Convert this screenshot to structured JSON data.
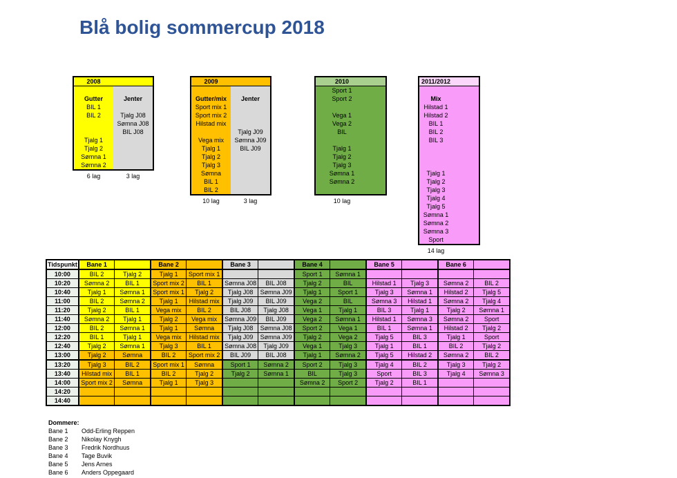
{
  "title": "Blå bolig sommercup 2018",
  "colors": {
    "yellow": "#ffff00",
    "orange": "#ffc000",
    "light_gray": "#d9d9d9",
    "green": "#70ad47",
    "light_green": "#a9d08e",
    "pink": "#f99cf9",
    "light_pink": "#fbd7fb",
    "time_fill": "#edf1ec",
    "title_blue": "#2f5496",
    "border": "#000000"
  },
  "groups": [
    {
      "year": "2008",
      "header_color": "Y",
      "footers": [
        "6 lag",
        "3 lag"
      ],
      "columns": [
        {
          "color": "Y",
          "rows": [
            "",
            {
              "t": "Gutter",
              "b": 1
            },
            "BIL 1",
            "BIL 2",
            "",
            "",
            "Tjalg 1",
            "Tjalg 2",
            "Sømna 1",
            "Sømna 2"
          ]
        },
        {
          "color": "G",
          "rows": [
            "",
            {
              "t": "Jenter",
              "b": 1
            },
            "",
            "Tjalg J08",
            "Sømna J08",
            "BIL J08",
            "",
            "",
            "",
            ""
          ]
        }
      ]
    },
    {
      "year": "2009",
      "header_color": "O",
      "footers": [
        "10 lag",
        "3 lag"
      ],
      "columns": [
        {
          "color": "O",
          "rows": [
            "",
            {
              "t": "Gutter/mix",
              "b": 1
            },
            "Sport mix 1",
            "Sport mix 2",
            "Hilstad mix",
            "",
            "Vega mix",
            "Tjalg 1",
            "Tjalg 2",
            "Tjalg 3",
            "Sømna",
            "BIL 1",
            "BIL 2"
          ]
        },
        {
          "color": "G",
          "rows": [
            "",
            {
              "t": "Jenter",
              "b": 1
            },
            "",
            "",
            "",
            "Tjalg J09",
            "Sømna J09",
            "BIL J09",
            "",
            "",
            "",
            "",
            ""
          ]
        }
      ]
    },
    {
      "year": "2010",
      "header_color": "NL",
      "footers": [
        "10 lag"
      ],
      "columns": [
        {
          "color": "N",
          "rows": [
            "Sport 1",
            "Sport 2",
            "",
            "Vega 1",
            "Vega 2",
            "BIL",
            "",
            "Tjalg 1",
            "Tjalg 2",
            "Tjalg 3",
            "Sømna 1",
            "Sømna 2",
            ""
          ]
        },
        {
          "color": "N",
          "rows": []
        }
      ]
    },
    {
      "year": "2011/2012",
      "header_color": "PL",
      "footers": [
        "14 lag"
      ],
      "columns": [
        {
          "color": "P",
          "rows": [
            "",
            {
              "t": "Mix",
              "b": 1
            },
            "Hilstad 1",
            "Hilstad 2",
            "BIL 1",
            "BIL 2",
            "BIL 3",
            "",
            "",
            "",
            "Tjalg 1",
            "Tjalg 2",
            "Tjalg 3",
            "Tjalg 4",
            "Tjalg 5",
            "Sømna 1",
            "Sømna 2",
            "Sømna 3",
            "Sport"
          ]
        },
        {
          "color": "P",
          "rows": []
        }
      ]
    }
  ],
  "schedule": {
    "time_label": "Tidspunkt",
    "banes": [
      {
        "label": "Bane 1",
        "color": "Y"
      },
      {
        "label": "Bane 2",
        "color": "O"
      },
      {
        "label": "Bane 3",
        "color": "G"
      },
      {
        "label": "Bane 4",
        "color": "N"
      },
      {
        "label": "Bane 5",
        "color": "P"
      },
      {
        "label": "Bane 6",
        "color": "P"
      }
    ],
    "rows": [
      {
        "time": "10:00",
        "cells": [
          [
            "BIL 2",
            "Y"
          ],
          [
            "Tjalg 2",
            "Y"
          ],
          [
            "Tjalg 1",
            "O"
          ],
          [
            "Sport mix 1",
            "O"
          ],
          [
            "",
            "G"
          ],
          [
            "",
            "G"
          ],
          [
            "Sport 1",
            "N"
          ],
          [
            "Sømna 1",
            "N"
          ],
          [
            "",
            "P"
          ],
          [
            "",
            "P"
          ],
          [
            "",
            "P"
          ],
          [
            "",
            "P"
          ]
        ]
      },
      {
        "time": "10:20",
        "cells": [
          [
            "Sømna 2",
            "Y"
          ],
          [
            "BIL 1",
            "Y"
          ],
          [
            "Sport mix 2",
            "O"
          ],
          [
            "BIL 1",
            "O"
          ],
          [
            "Sømna J08",
            "G"
          ],
          [
            "BIL J08",
            "G"
          ],
          [
            "Tjalg 2",
            "N"
          ],
          [
            "BIL",
            "N"
          ],
          [
            "Hilstad 1",
            "P"
          ],
          [
            "Tjalg 3",
            "P"
          ],
          [
            "Sømna 2",
            "P"
          ],
          [
            "BIL 2",
            "P"
          ]
        ]
      },
      {
        "time": "10:40",
        "cells": [
          [
            "Tjalg 1",
            "Y"
          ],
          [
            "Sømna 1",
            "Y"
          ],
          [
            "Sport mix 1",
            "O"
          ],
          [
            "Tjalg 2",
            "O"
          ],
          [
            "Tjalg J08",
            "G"
          ],
          [
            "Sømna J09",
            "G"
          ],
          [
            "Tjalg 1",
            "N"
          ],
          [
            "Sport 1",
            "N"
          ],
          [
            "Tjalg 3",
            "P"
          ],
          [
            "Sømna 1",
            "P"
          ],
          [
            "Hilstad 2",
            "P"
          ],
          [
            "Tjalg 5",
            "P"
          ]
        ]
      },
      {
        "time": "11:00",
        "cells": [
          [
            "BIL 2",
            "Y"
          ],
          [
            "Sømna 2",
            "Y"
          ],
          [
            "Tjalg 1",
            "O"
          ],
          [
            "Hilstad mix",
            "O"
          ],
          [
            "Tjalg J09",
            "G"
          ],
          [
            "BIL J09",
            "G"
          ],
          [
            "Vega 2",
            "N"
          ],
          [
            "BIL",
            "N"
          ],
          [
            "Sømna 3",
            "P"
          ],
          [
            "Hilstad 1",
            "P"
          ],
          [
            "Sømna 2",
            "P"
          ],
          [
            "Tjalg 4",
            "P"
          ]
        ]
      },
      {
        "time": "11:20",
        "cells": [
          [
            "Tjalg 2",
            "Y"
          ],
          [
            "BIL 1",
            "Y"
          ],
          [
            "Vega mix",
            "O"
          ],
          [
            "BIL 2",
            "O"
          ],
          [
            "BIL J08",
            "G"
          ],
          [
            "Tjalg J08",
            "G"
          ],
          [
            "Vega 1",
            "N"
          ],
          [
            "Tjalg 1",
            "N"
          ],
          [
            "BIL 3",
            "P"
          ],
          [
            "Tjalg 1",
            "P"
          ],
          [
            "Tjalg 2",
            "P"
          ],
          [
            "Sømna 1",
            "P"
          ]
        ]
      },
      {
        "time": "11:40",
        "cells": [
          [
            "Sømna 2",
            "Y"
          ],
          [
            "Tjalg 1",
            "Y"
          ],
          [
            "Tjalg 2",
            "O"
          ],
          [
            "Vega mix",
            "O"
          ],
          [
            "Sømna J09",
            "G"
          ],
          [
            "BIL J09",
            "G"
          ],
          [
            "Vega 2",
            "N"
          ],
          [
            "Sømna 1",
            "N"
          ],
          [
            "Hilstad 1",
            "P"
          ],
          [
            "Sømna 3",
            "P"
          ],
          [
            "Sømna 2",
            "P"
          ],
          [
            "Sport",
            "P"
          ]
        ]
      },
      {
        "time": "12:00",
        "cells": [
          [
            "BIL 2",
            "Y"
          ],
          [
            "Sømna 1",
            "Y"
          ],
          [
            "Tjalg 1",
            "O"
          ],
          [
            "Sømna",
            "O"
          ],
          [
            "Tjalg J08",
            "G"
          ],
          [
            "Sømna J08",
            "G"
          ],
          [
            "Sport 2",
            "N"
          ],
          [
            "Vega 1",
            "N"
          ],
          [
            "BIL 1",
            "P"
          ],
          [
            "Sømna 1",
            "P"
          ],
          [
            "Hilstad 2",
            "P"
          ],
          [
            "Tjalg 2",
            "P"
          ]
        ]
      },
      {
        "time": "12:20",
        "cells": [
          [
            "BIL 1",
            "Y"
          ],
          [
            "Tjalg 1",
            "Y"
          ],
          [
            "Vega mix",
            "O"
          ],
          [
            "Hilstad mix",
            "O"
          ],
          [
            "Tjalg J09",
            "G"
          ],
          [
            "Sømna J09",
            "G"
          ],
          [
            "Tjalg 2",
            "N"
          ],
          [
            "Vega 2",
            "N"
          ],
          [
            "Tjalg 5",
            "P"
          ],
          [
            "BIL 3",
            "P"
          ],
          [
            "Tjalg 1",
            "P"
          ],
          [
            "Sport",
            "P"
          ]
        ]
      },
      {
        "time": "12:40",
        "cells": [
          [
            "Tjalg 2",
            "Y"
          ],
          [
            "Sømna 1",
            "Y"
          ],
          [
            "Tjalg 3",
            "O"
          ],
          [
            "BIL 1",
            "O"
          ],
          [
            "Sømna J08",
            "G"
          ],
          [
            "Tjalg J09",
            "G"
          ],
          [
            "Vega 1",
            "N"
          ],
          [
            "Tjalg 3",
            "N"
          ],
          [
            "Tjalg 1",
            "P"
          ],
          [
            "BIL 1",
            "P"
          ],
          [
            "BIL 2",
            "P"
          ],
          [
            "Tjalg 2",
            "P"
          ]
        ]
      },
      {
        "time": "13:00",
        "cells": [
          [
            "Tjalg 2",
            "O"
          ],
          [
            "Sømna",
            "O"
          ],
          [
            "BIL 2",
            "O"
          ],
          [
            "Sport mix 2",
            "O"
          ],
          [
            "BIL J09",
            "G"
          ],
          [
            "BIL J08",
            "G"
          ],
          [
            "Tjalg 1",
            "N"
          ],
          [
            "Sømna 2",
            "N"
          ],
          [
            "Tjalg 5",
            "P"
          ],
          [
            "Hilstad 2",
            "P"
          ],
          [
            "Sømna 2",
            "P"
          ],
          [
            "BIL 2",
            "P"
          ]
        ]
      },
      {
        "time": "13:20",
        "thick": true,
        "cells": [
          [
            "Tjalg 3",
            "O"
          ],
          [
            "BIL 2",
            "O"
          ],
          [
            "Sport mix 1",
            "O"
          ],
          [
            "Sømna",
            "O"
          ],
          [
            "Sport 1",
            "N"
          ],
          [
            "Sømna 2",
            "N"
          ],
          [
            "Sport 2",
            "N"
          ],
          [
            "Tjalg 3",
            "N"
          ],
          [
            "Tjalg 4",
            "P"
          ],
          [
            "BIL 2",
            "P"
          ],
          [
            "Tjalg 3",
            "P"
          ],
          [
            "Tjalg 2",
            "P"
          ]
        ]
      },
      {
        "time": "13:40",
        "cells": [
          [
            "Hilstad mix",
            "O"
          ],
          [
            "BIL 1",
            "O"
          ],
          [
            "BIL 2",
            "O"
          ],
          [
            "Tjalg 2",
            "O"
          ],
          [
            "Tjalg 2",
            "N"
          ],
          [
            "Sømna 1",
            "N"
          ],
          [
            "BIL",
            "N"
          ],
          [
            "Tjalg 3",
            "N"
          ],
          [
            "Sport",
            "P"
          ],
          [
            "BIL 3",
            "P"
          ],
          [
            "Tjalg 4",
            "P"
          ],
          [
            "Sømna 3",
            "P"
          ]
        ]
      },
      {
        "time": "14:00",
        "cells": [
          [
            "Sport mix 2",
            "O"
          ],
          [
            "Sømna",
            "O"
          ],
          [
            "Tjalg 1",
            "O"
          ],
          [
            "Tjalg 3",
            "O"
          ],
          [
            "",
            "N"
          ],
          [
            "",
            "N"
          ],
          [
            "Sømna 2",
            "N"
          ],
          [
            "Sport 2",
            "N"
          ],
          [
            "Tjalg 2",
            "P"
          ],
          [
            "BIL 1",
            "P"
          ],
          [
            "",
            "P"
          ],
          [
            "",
            "P"
          ]
        ]
      },
      {
        "time": "14:20",
        "cells": [
          [
            "",
            "O"
          ],
          [
            "",
            "O"
          ],
          [
            "",
            "O"
          ],
          [
            "",
            "O"
          ],
          [
            "",
            "N"
          ],
          [
            "",
            "N"
          ],
          [
            "",
            "N"
          ],
          [
            "",
            "N"
          ],
          [
            "",
            "P"
          ],
          [
            "",
            "P"
          ],
          [
            "",
            "P"
          ],
          [
            "",
            "P"
          ]
        ]
      },
      {
        "time": "14:40",
        "cells": [
          [
            "",
            "O"
          ],
          [
            "",
            "O"
          ],
          [
            "",
            "O"
          ],
          [
            "",
            "O"
          ],
          [
            "",
            "N"
          ],
          [
            "",
            "N"
          ],
          [
            "",
            "N"
          ],
          [
            "",
            "N"
          ],
          [
            "",
            "P"
          ],
          [
            "",
            "P"
          ],
          [
            "",
            "P"
          ],
          [
            "",
            "P"
          ]
        ]
      }
    ]
  },
  "referees": {
    "heading": "Dommere:",
    "items": [
      {
        "bane": "Bane 1",
        "name": "Odd-Erling Reppen"
      },
      {
        "bane": "Bane 2",
        "name": "Nikolay Knygh"
      },
      {
        "bane": "Bane 3",
        "name": "Fredrik Nordhuus"
      },
      {
        "bane": "Bane 4",
        "name": "Tage Buvik"
      },
      {
        "bane": "Bane 5",
        "name": "Jens Arnes"
      },
      {
        "bane": "Bane 6",
        "name": "Anders Oppegaard"
      }
    ]
  }
}
